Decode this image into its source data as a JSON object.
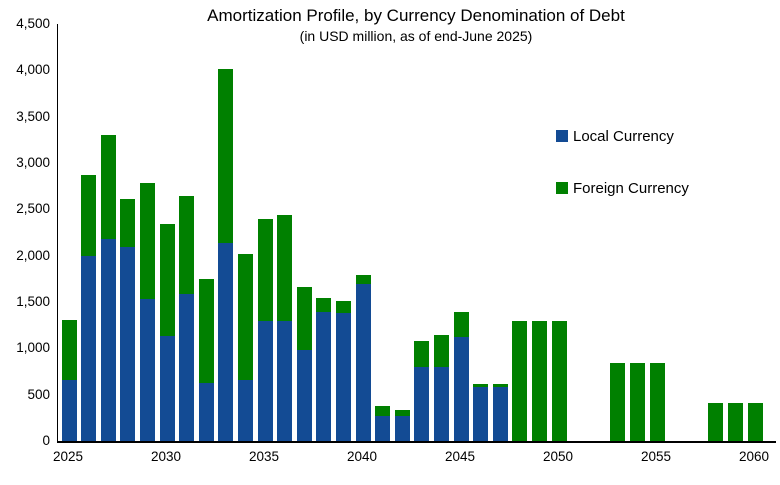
{
  "title": "Amortization Profile, by Currency Denomination of Debt",
  "subtitle": "(in USD million, as of end-June 2025)",
  "legend": {
    "local_label": "Local Currency",
    "foreign_label": "Foreign Currency"
  },
  "colors": {
    "local_currency": "#134B94",
    "foreign_currency": "#008000",
    "axis": "#000000",
    "text": "#000000"
  },
  "chart_data": {
    "type": "bar",
    "stacked": true,
    "title": "Amortization Profile, by Currency Denomination of Debt",
    "subtitle": "(in USD million, as of end-June 2025)",
    "xlabel": "",
    "ylabel": "",
    "x": [
      2025,
      2026,
      2027,
      2028,
      2029,
      2030,
      2031,
      2032,
      2033,
      2034,
      2035,
      2036,
      2037,
      2038,
      2039,
      2040,
      2041,
      2042,
      2043,
      2044,
      2045,
      2046,
      2047,
      2048,
      2049,
      2050,
      2051,
      2052,
      2053,
      2054,
      2055,
      2056,
      2057,
      2058,
      2059,
      2060
    ],
    "series": [
      {
        "name": "Local Currency",
        "color": "#134B94",
        "values": [
          660,
          2000,
          2180,
          2090,
          1530,
          1135,
          1585,
          630,
          2140,
          655,
          1295,
          1295,
          985,
          1390,
          1385,
          1690,
          270,
          265,
          800,
          800,
          1125,
          585,
          585,
          0,
          0,
          0,
          0,
          0,
          0,
          0,
          0,
          0,
          0,
          0,
          0,
          0
        ]
      },
      {
        "name": "Foreign Currency",
        "color": "#008000",
        "values": [
          650,
          870,
          1120,
          525,
          1255,
          1205,
          1060,
          1115,
          1870,
          1365,
          1105,
          1140,
          675,
          155,
          125,
          100,
          110,
          70,
          280,
          340,
          265,
          35,
          35,
          1300,
          1300,
          1300,
          0,
          0,
          840,
          840,
          840,
          0,
          0,
          410,
          410,
          410
        ]
      }
    ],
    "ylim": [
      0,
      4500
    ],
    "ytick_interval": 500,
    "ytick_values": [
      0,
      500,
      1000,
      1500,
      2000,
      2500,
      3000,
      3500,
      4000,
      4500
    ],
    "ytick_labels": [
      "0",
      "500",
      "1,000",
      "1,500",
      "2,000",
      "2,500",
      "3,000",
      "3,500",
      "4,000",
      "4,500"
    ],
    "xtick_values": [
      2025,
      2030,
      2035,
      2040,
      2045,
      2050,
      2055,
      2060
    ],
    "xtick_labels": [
      "2025",
      "2030",
      "2035",
      "2040",
      "2045",
      "2050",
      "2055",
      "2060"
    ],
    "grid": false,
    "legend_position": "right-middle"
  }
}
